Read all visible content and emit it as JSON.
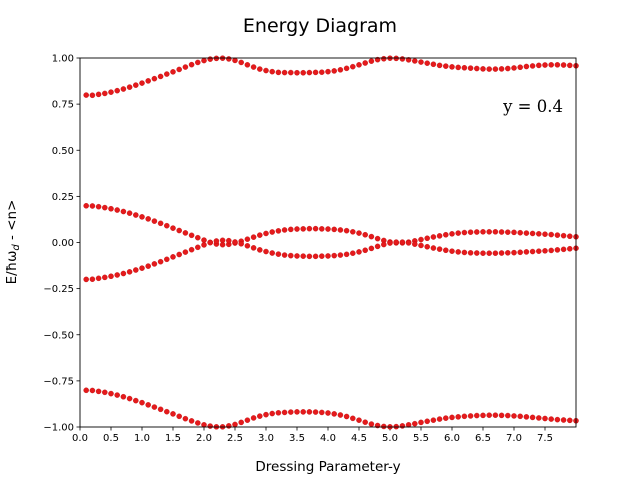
{
  "chart_data": {
    "type": "scatter",
    "title": "Energy Diagram",
    "xlabel": "Dressing Parameter-y",
    "ylabel": "E/ħω_d - <n>",
    "ylabel_main": "E/ħω",
    "ylabel_sub": "d",
    "ylabel_tail": " - <n>",
    "annotation": "y = 0.4",
    "xlim": [
      0.0,
      8.0
    ],
    "ylim": [
      -1.0,
      1.0
    ],
    "xticks": [
      "0.0",
      "0.5",
      "1.0",
      "1.5",
      "2.0",
      "2.5",
      "3.0",
      "3.5",
      "4.0",
      "4.5",
      "5.0",
      "5.5",
      "6.0",
      "6.5",
      "7.0",
      "7.5"
    ],
    "yticks": [
      "1.00",
      "0.75",
      "0.50",
      "0.25",
      "0.00",
      "−0.25",
      "−0.50",
      "−0.75",
      "−1.00"
    ],
    "grid": false,
    "marker_color": "#e41a1c",
    "x": [
      0.1,
      0.2,
      0.3,
      0.4,
      0.5,
      0.6,
      0.7,
      0.8,
      0.9,
      1.0,
      1.1,
      1.2,
      1.3,
      1.4,
      1.5,
      1.6,
      1.7,
      1.8,
      1.9,
      2.0,
      2.1,
      2.2,
      2.3,
      2.4,
      2.5,
      2.6,
      2.7,
      2.8,
      2.9,
      3.0,
      3.1,
      3.2,
      3.3,
      3.4,
      3.5,
      3.6,
      3.7,
      3.8,
      3.9,
      4.0,
      4.1,
      4.2,
      4.3,
      4.4,
      4.5,
      4.6,
      4.7,
      4.8,
      4.9,
      5.0,
      5.1,
      5.2,
      5.3,
      5.4,
      5.5,
      5.6,
      5.7,
      5.8,
      5.9,
      6.0,
      6.1,
      6.2,
      6.3,
      6.4,
      6.5,
      6.6,
      6.7,
      6.8,
      6.9,
      7.0,
      7.1,
      7.2,
      7.3,
      7.4,
      7.5,
      7.6,
      7.7,
      7.8,
      7.9,
      8.0
    ],
    "series": [
      {
        "values": [
          0.799,
          0.798,
          0.803,
          0.808,
          0.815,
          0.823,
          0.832,
          0.842,
          0.853,
          0.864,
          0.876,
          0.888,
          0.9,
          0.913,
          0.925,
          0.938,
          0.951,
          0.964,
          0.976,
          0.986,
          0.994,
          0.998,
          0.999,
          0.995,
          0.987,
          0.976,
          0.963,
          0.951,
          0.94,
          0.932,
          0.926,
          0.922,
          0.921,
          0.921,
          0.92,
          0.92,
          0.921,
          0.922,
          0.923,
          0.926,
          0.93,
          0.936,
          0.944,
          0.953,
          0.963,
          0.973,
          0.983,
          0.991,
          0.996,
          0.999,
          0.998,
          0.995,
          0.99,
          0.984,
          0.978,
          0.972,
          0.966,
          0.96,
          0.956,
          0.952,
          0.949,
          0.947,
          0.945,
          0.943,
          0.941,
          0.94,
          0.94,
          0.941,
          0.943,
          0.946,
          0.95,
          0.954,
          0.957,
          0.96,
          0.962,
          0.963,
          0.963,
          0.962,
          0.96,
          0.958
        ]
      },
      {
        "values": [
          0.199,
          0.198,
          0.194,
          0.189,
          0.183,
          0.176,
          0.168,
          0.159,
          0.149,
          0.139,
          0.128,
          0.116,
          0.104,
          0.091,
          0.078,
          0.065,
          0.052,
          0.039,
          0.026,
          0.013,
          0.001,
          -0.008,
          -0.012,
          -0.01,
          -0.003,
          0.007,
          0.018,
          0.029,
          0.04,
          0.049,
          0.057,
          0.063,
          0.068,
          0.071,
          0.073,
          0.074,
          0.075,
          0.075,
          0.074,
          0.073,
          0.071,
          0.068,
          0.064,
          0.058,
          0.051,
          0.042,
          0.032,
          0.021,
          0.011,
          0.003,
          -0.002,
          -0.002,
          0.002,
          0.009,
          0.016,
          0.023,
          0.03,
          0.036,
          0.042,
          0.047,
          0.051,
          0.054,
          0.056,
          0.057,
          0.058,
          0.058,
          0.058,
          0.057,
          0.056,
          0.055,
          0.053,
          0.051,
          0.049,
          0.047,
          0.045,
          0.043,
          0.04,
          0.037,
          0.034,
          0.031
        ]
      },
      {
        "values": [
          -0.2,
          -0.199,
          -0.194,
          -0.189,
          -0.183,
          -0.176,
          -0.168,
          -0.159,
          -0.149,
          -0.139,
          -0.128,
          -0.116,
          -0.104,
          -0.091,
          -0.078,
          -0.065,
          -0.052,
          -0.039,
          -0.026,
          -0.013,
          -0.001,
          0.008,
          0.012,
          0.01,
          0.003,
          -0.007,
          -0.018,
          -0.029,
          -0.04,
          -0.049,
          -0.057,
          -0.063,
          -0.068,
          -0.071,
          -0.073,
          -0.074,
          -0.075,
          -0.075,
          -0.074,
          -0.073,
          -0.071,
          -0.068,
          -0.064,
          -0.058,
          -0.051,
          -0.042,
          -0.032,
          -0.021,
          -0.011,
          -0.003,
          0.002,
          0.002,
          -0.002,
          -0.009,
          -0.016,
          -0.023,
          -0.03,
          -0.036,
          -0.042,
          -0.047,
          -0.051,
          -0.054,
          -0.056,
          -0.057,
          -0.058,
          -0.058,
          -0.058,
          -0.057,
          -0.056,
          -0.055,
          -0.053,
          -0.051,
          -0.049,
          -0.047,
          -0.045,
          -0.043,
          -0.04,
          -0.037,
          -0.034,
          -0.031
        ]
      },
      {
        "values": [
          -0.801,
          -0.802,
          -0.807,
          -0.812,
          -0.819,
          -0.827,
          -0.836,
          -0.846,
          -0.857,
          -0.868,
          -0.88,
          -0.892,
          -0.904,
          -0.917,
          -0.929,
          -0.942,
          -0.955,
          -0.967,
          -0.978,
          -0.988,
          -0.995,
          -0.999,
          -0.999,
          -0.994,
          -0.986,
          -0.975,
          -0.963,
          -0.951,
          -0.941,
          -0.933,
          -0.927,
          -0.923,
          -0.921,
          -0.919,
          -0.918,
          -0.918,
          -0.918,
          -0.919,
          -0.921,
          -0.924,
          -0.929,
          -0.935,
          -0.943,
          -0.953,
          -0.963,
          -0.974,
          -0.984,
          -0.992,
          -0.997,
          -0.999,
          -0.998,
          -0.994,
          -0.988,
          -0.982,
          -0.975,
          -0.969,
          -0.963,
          -0.957,
          -0.952,
          -0.948,
          -0.945,
          -0.942,
          -0.94,
          -0.938,
          -0.937,
          -0.936,
          -0.936,
          -0.937,
          -0.938,
          -0.94,
          -0.942,
          -0.945,
          -0.948,
          -0.951,
          -0.954,
          -0.957,
          -0.96,
          -0.962,
          -0.964,
          -0.966
        ]
      }
    ]
  }
}
